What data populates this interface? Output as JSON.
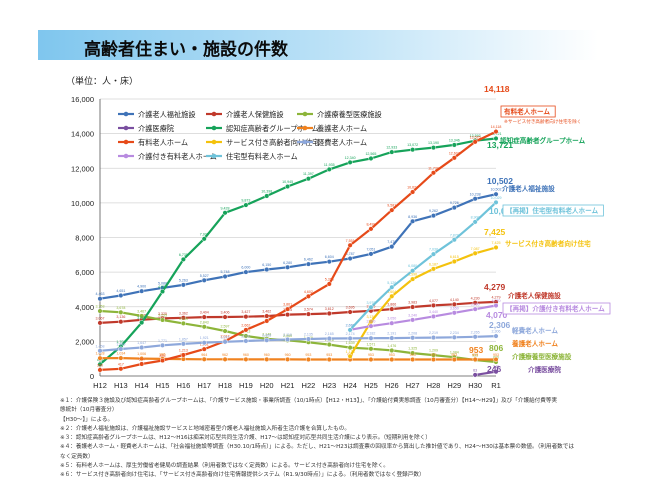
{
  "title": "高齢者住まい・施設の件数",
  "unit_label": "（単位：人・床）",
  "colors": {
    "tokuyo": "#3f73b8",
    "roken": "#c0392b",
    "ryoyo": "#8db53a",
    "iryoin": "#7a4fa0",
    "gh": "#16a35a",
    "yogo": "#f0821f",
    "yuryo": "#e64a19",
    "saju": "#f4c20d",
    "keihi": "#8ea8db",
    "yuryo_saju": "#b88be0",
    "jutaku": "#6fc3da"
  },
  "chart_data": {
    "type": "line",
    "title": "高齢者住まい・施設の件数",
    "xlabel": "",
    "ylabel": "（単位：人・床）",
    "ylim": [
      0,
      16000
    ],
    "yticks": [
      "0",
      "2,000",
      "4,000",
      "6,000",
      "8,000",
      "10,000",
      "12,000",
      "14,000",
      "16,000"
    ],
    "categories": [
      "H12",
      "H13",
      "H14",
      "H15",
      "H16",
      "H17",
      "H18",
      "H19",
      "H20",
      "H21",
      "H22",
      "H23",
      "H24",
      "H25",
      "H26",
      "H27",
      "H28",
      "H29",
      "H30",
      "R1"
    ],
    "grid": true,
    "legend_position": "top",
    "series": [
      {
        "key": "tokuyo",
        "name": "介護老人福祉施設",
        "values": [
          4463,
          4651,
          4900,
          5088,
          5263,
          5527,
          5748,
          6000,
          6150,
          6280,
          6462,
          6604,
          6787,
          7051,
          7470,
          8936,
          9262,
          9726,
          10238,
          10502
        ]
      },
      {
        "key": "roken",
        "name": "介護老人保健施設",
        "values": [
          3067,
          3136,
          3245,
          3325,
          3362,
          3404,
          3406,
          3427,
          3462,
          3545,
          3574,
          3612,
          3695,
          3765,
          3866,
          3983,
          4077,
          4140,
          4230,
          4279
        ]
      },
      {
        "key": "ryoyo",
        "name": "介護療養型医療施設",
        "values": [
          3753,
          3678,
          3467,
          3235,
          3039,
          2843,
          2597,
          2313,
          2148,
          2060,
          1949,
          1816,
          1639,
          1571,
          1476,
          1325,
          1209,
          1084,
          925,
          806
        ]
      },
      {
        "key": "iryoin",
        "name": "介護医療院",
        "values": [
          null,
          null,
          null,
          null,
          null,
          null,
          null,
          null,
          null,
          null,
          null,
          null,
          null,
          null,
          null,
          null,
          null,
          null,
          63,
          246
        ]
      },
      {
        "key": "gh",
        "name": "認知症高齢者グループホーム",
        "values": [
          675,
          1703,
          3084,
          4879,
          6735,
          7923,
          9428,
          9873,
          10398,
          10945,
          11397,
          11935,
          12340,
          12565,
          12933,
          13072,
          13190,
          13346,
          13593,
          13721
        ]
      },
      {
        "key": "yogo",
        "name": "養護老人ホーム",
        "values": [
          1028,
          1034,
          1006,
          986,
          979,
          964,
          962,
          960,
          960,
          960,
          953,
          953,
          953,
          953,
          953,
          953,
          953,
          953,
          953,
          953
        ]
      },
      {
        "key": "yuryo",
        "name": "有料老人ホーム",
        "values": [
          350,
          417,
          694,
          895,
          1213,
          1551,
          2017,
          2662,
          3178,
          3861,
          4602,
          5316,
          7551,
          8499,
          9581,
          10627,
          11739,
          12602,
          13525,
          14118
        ]
      },
      {
        "key": "saju",
        "name": "サービス付き高齢者向け住宅",
        "values": [
          null,
          null,
          null,
          null,
          null,
          null,
          null,
          null,
          null,
          null,
          null,
          null,
          1138,
          3139,
          4604,
          5596,
          6187,
          6615,
          7087,
          7425
        ]
      },
      {
        "key": "keihi",
        "name": "軽費老人ホーム",
        "values": [
          1458,
          1559,
          1647,
          1771,
          1857,
          1921,
          1973,
          2023,
          2065,
          2110,
          2135,
          2165,
          2174,
          2182,
          2191,
          2208,
          2219,
          2234,
          2265,
          2306
        ]
      },
      {
        "key": "yuryo_saju",
        "name": "介護付き有料老人ホーム",
        "values": [
          null,
          null,
          null,
          null,
          null,
          null,
          null,
          null,
          null,
          null,
          null,
          null,
          2670,
          2880,
          3050,
          3240,
          3440,
          3650,
          3860,
          4070
        ]
      },
      {
        "key": "jutaku",
        "name": "住宅型有料老人ホーム",
        "values": [
          null,
          null,
          null,
          null,
          null,
          null,
          null,
          null,
          null,
          null,
          null,
          null,
          2660,
          3970,
          5126,
          6080,
          7038,
          7870,
          8900,
          10029
        ]
      }
    ],
    "right_labels": [
      {
        "key": "yuryo",
        "value": "14,118",
        "name": "有料老人ホーム",
        "note": "※サービス付き高齢者向け住宅を除く"
      },
      {
        "key": "gh",
        "value": "13,721",
        "name": "認知症高齢者グループホーム"
      },
      {
        "key": "tokuyo",
        "value": "10,502",
        "name": "介護老人福祉施設"
      },
      {
        "key": "jutaku",
        "value": "10,029",
        "name": "【再掲】住宅型有料老人ホーム"
      },
      {
        "key": "saju",
        "value": "7,425",
        "name": "サービス付き高齢者向け住宅"
      },
      {
        "key": "roken",
        "value": "4,279",
        "name": "介護老人保健施設"
      },
      {
        "key": "yuryo_saju",
        "value": "4,070",
        "name": "【再掲】介護付き有料老人ホーム"
      },
      {
        "key": "keihi",
        "value": "2,306",
        "name": "軽費老人ホーム"
      },
      {
        "key": "yogo",
        "value": "953",
        "name": "養護老人ホーム"
      },
      {
        "key": "ryoyo",
        "value": "806",
        "name": "介護療養型医療施設"
      },
      {
        "key": "iryoin",
        "value": "246",
        "name": "介護医療院"
      }
    ]
  },
  "notes": [
    "※１：介護保険３施設及び認知症高齢者グループホームは、「介護サービス施設・事業所調査（10/1時点）【H12・H13】」、「介護給付費実態調査（10月審査分）【H14〜H29】」及び「介護給付費等実",
    "態統計（10月審査分）",
    "【H30〜】」による。",
    "※２：介護老人福祉施設は、介護福祉施設サービスと地域密着型介護老人福祉施設入所者生活介護を合算したもの。",
    "※３：認知症高齢者グループホームは、H12〜H16は痴呆対応型共同生活介護、H17〜は認知症対応型共同生活介護により表示。（短期利用を除く）",
    "※４：養護老人ホーム・軽費老人ホームは、「社会福祉施設等調査（H30.10/1時点）」による。ただし、H21〜H23は調査票の回収率から算出した推計値であり、H24〜H30は基本票の数値。（利用者数では",
    "なく定員数）",
    "※５：有料老人ホームは、厚生労働省老健局の調査結果（利用者数ではなく定員数）による。サービス付き高齢者向け住宅を除く。",
    "※６：サービス付き高齢者向け住宅は、「サービス付き高齢者向け住宅情報提供システム（R1.9/30時点）」による。（利用者数ではなく登録戸数）"
  ]
}
